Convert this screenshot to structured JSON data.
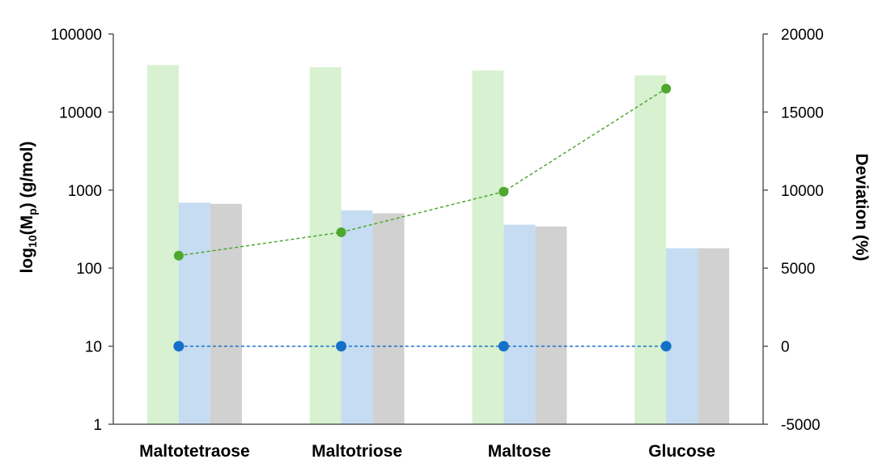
{
  "chart_data": {
    "type": "bar",
    "categories": [
      "Maltotetraose",
      "Maltotriose",
      "Maltose",
      "Glucose"
    ],
    "y_left": {
      "label_main": "log",
      "label_sub": "10",
      "label_mid": "(M",
      "label_sub2": "p",
      "label_tail": ") (g/mol)",
      "scale": "log",
      "ylim": [
        1,
        100000
      ],
      "ticks": [
        1,
        10,
        100,
        1000,
        10000,
        100000
      ],
      "tick_labels": [
        "1",
        "10",
        "100",
        "1000",
        "10000",
        "100000"
      ]
    },
    "y_right": {
      "label": "Deviation (%)",
      "scale": "linear",
      "ylim": [
        -5000,
        20000
      ],
      "ticks": [
        -5000,
        0,
        5000,
        10000,
        15000,
        20000
      ],
      "tick_labels": [
        "-5000",
        "0",
        "5000",
        "10000",
        "15000",
        "20000"
      ]
    },
    "bar_series": [
      {
        "color": "#d7f1d1",
        "values": [
          40000,
          37500,
          34000,
          29500
        ]
      },
      {
        "color": "#c6dcf2",
        "values": [
          690,
          550,
          360,
          180
        ]
      },
      {
        "color": "#d1d1d1",
        "values": [
          666,
          504,
          342,
          180
        ]
      }
    ],
    "line_series": [
      {
        "color": "#4ea72e",
        "axis": "right",
        "values": [
          5800,
          7300,
          9900,
          16500
        ]
      },
      {
        "color": "#1570c9",
        "axis": "right",
        "values": [
          0,
          0,
          0,
          0
        ]
      }
    ],
    "grid": false,
    "legend": "none"
  }
}
